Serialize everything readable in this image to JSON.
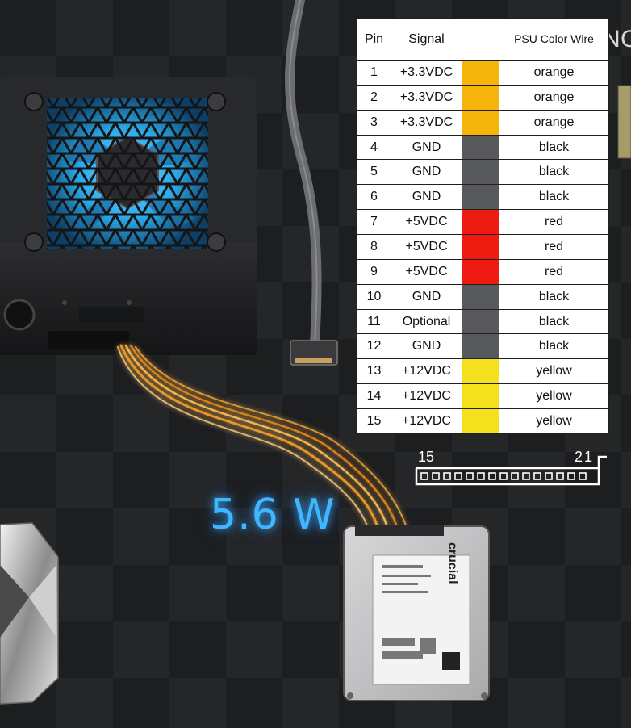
{
  "table": {
    "headers": [
      "Pin",
      "Signal",
      "",
      "PSU Color Wire"
    ],
    "rows": [
      {
        "pin": "1",
        "signal": "+3.3VDC",
        "swatch": "#f5b40a",
        "wire": "orange"
      },
      {
        "pin": "2",
        "signal": "+3.3VDC",
        "swatch": "#f5b40a",
        "wire": "orange"
      },
      {
        "pin": "3",
        "signal": "+3.3VDC",
        "swatch": "#f5b40a",
        "wire": "orange"
      },
      {
        "pin": "4",
        "signal": "GND",
        "swatch": "#58595c",
        "wire": "black"
      },
      {
        "pin": "5",
        "signal": "GND",
        "swatch": "#58595c",
        "wire": "black"
      },
      {
        "pin": "6",
        "signal": "GND",
        "swatch": "#58595c",
        "wire": "black"
      },
      {
        "pin": "7",
        "signal": "+5VDC",
        "swatch": "#ee1c10",
        "wire": "red"
      },
      {
        "pin": "8",
        "signal": "+5VDC",
        "swatch": "#ee1c10",
        "wire": "red"
      },
      {
        "pin": "9",
        "signal": "+5VDC",
        "swatch": "#ee1c10",
        "wire": "red"
      },
      {
        "pin": "10",
        "signal": "GND",
        "swatch": "#58595c",
        "wire": "black"
      },
      {
        "pin": "11",
        "signal": "Optional",
        "swatch": "#58595c",
        "wire": "black"
      },
      {
        "pin": "12",
        "signal": "GND",
        "swatch": "#58595c",
        "wire": "black"
      },
      {
        "pin": "13",
        "signal": "+12VDC",
        "swatch": "#f4e01c",
        "wire": "yellow"
      },
      {
        "pin": "14",
        "signal": "+12VDC",
        "swatch": "#f4e01c",
        "wire": "yellow"
      },
      {
        "pin": "15",
        "signal": "+12VDC",
        "swatch": "#f4e01c",
        "wire": "yellow"
      }
    ]
  },
  "connector": {
    "left_label": "15",
    "right_label": "21"
  },
  "power_label": "5.6 W",
  "watermark": "NONO",
  "ssd": {
    "brand": "crucial"
  },
  "colors": {
    "power_glow": "#3fb7ff",
    "fan_blue": "#2aa8e8",
    "cable_glow": "#f0a030"
  }
}
